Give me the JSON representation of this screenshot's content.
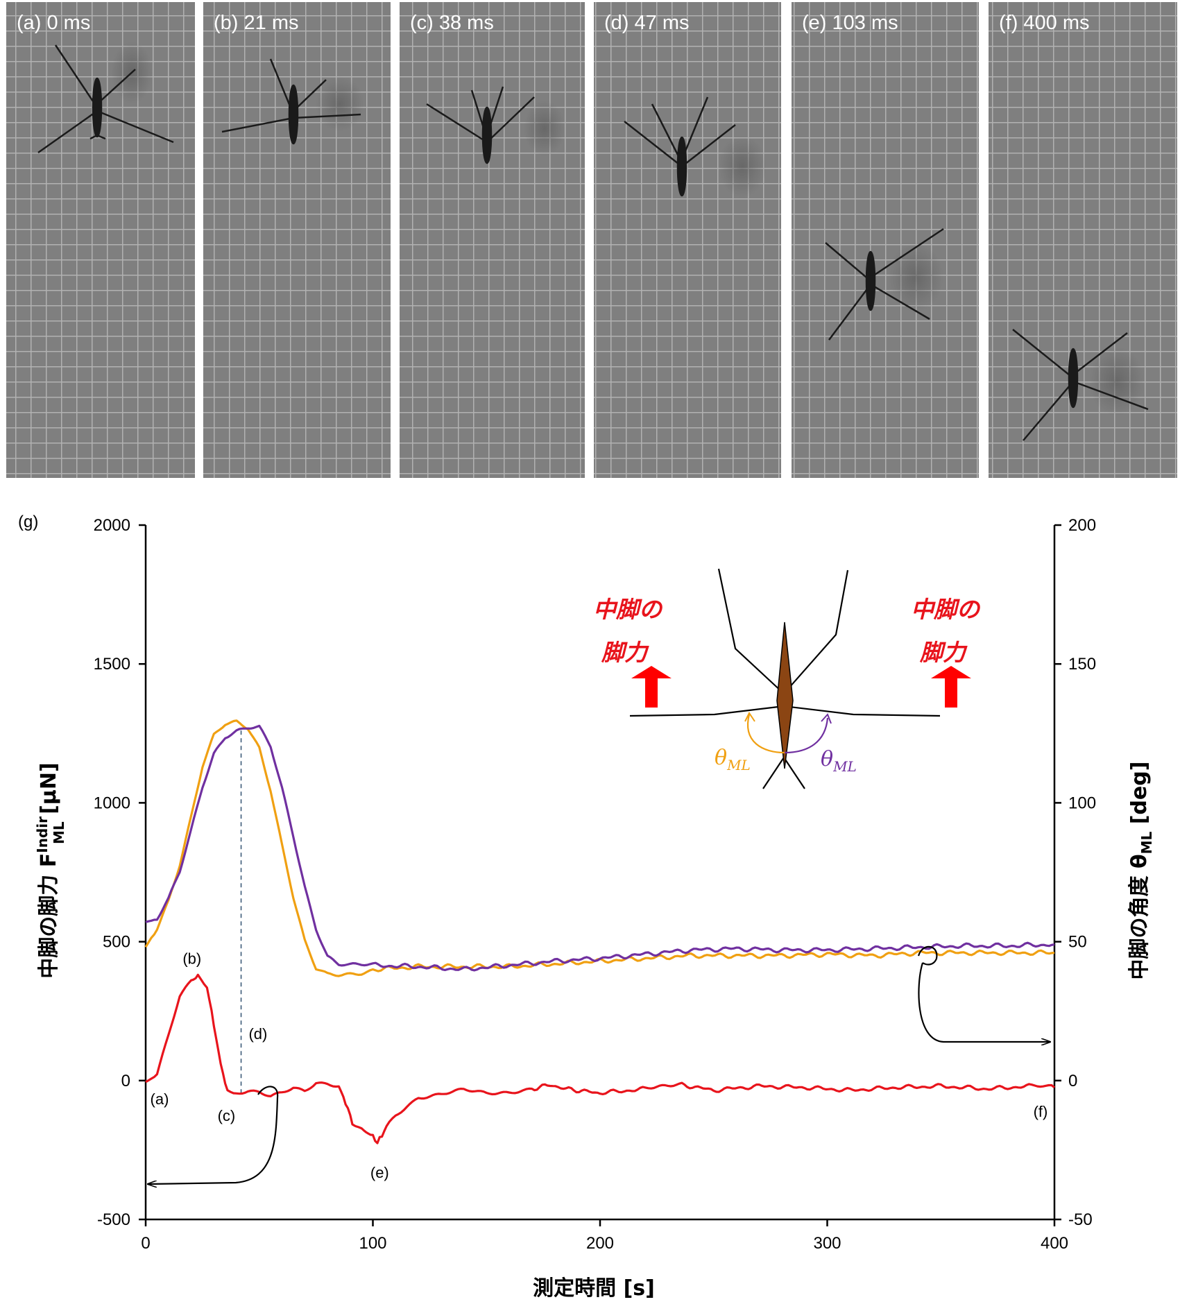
{
  "frames": [
    {
      "label": "(a) 0 ms"
    },
    {
      "label": "(b) 21 ms"
    },
    {
      "label": "(c) 38 ms"
    },
    {
      "label": "(d) 47 ms"
    },
    {
      "label": "(e) 103 ms"
    },
    {
      "label": "(f) 400 ms"
    }
  ],
  "chart_data": {
    "type": "line",
    "panel_label": "(g)",
    "xlabel": "測定時間 [s]",
    "ylabel_left": "中脚の脚力 F",
    "ylabel_left_sub": "ML",
    "ylabel_left_sup": "Indir",
    "ylabel_left_unit": " [μN]",
    "ylabel_right": "中脚の角度 θ",
    "ylabel_right_sub": "ML",
    "ylabel_right_unit": " [deg]",
    "xlim": [
      0,
      400
    ],
    "ylim_left": [
      -500,
      2000
    ],
    "ylim_right": [
      -50,
      200
    ],
    "x_ticks": [
      "0",
      "100",
      "200",
      "300",
      "400"
    ],
    "y_ticks_left": [
      "-500",
      "0",
      "500",
      "1000",
      "1500",
      "2000"
    ],
    "y_ticks_right": [
      "-50",
      "0",
      "50",
      "100",
      "150",
      "200"
    ],
    "grid": false,
    "series": [
      {
        "axis": "left",
        "color": "#e8141c",
        "x": [
          0,
          5,
          10,
          15,
          20,
          23,
          27,
          30,
          33,
          36,
          40,
          45,
          50,
          55,
          60,
          65,
          70,
          75,
          80,
          85,
          88,
          91,
          95,
          98,
          100,
          102,
          104,
          106,
          110,
          115,
          120,
          130,
          140,
          150,
          160,
          170,
          178,
          185,
          200,
          220,
          236,
          250,
          270,
          290,
          310,
          330,
          350,
          370,
          390,
          400
        ],
        "y": [
          -5,
          20,
          160,
          300,
          360,
          375,
          340,
          200,
          60,
          -40,
          -45,
          -40,
          -45,
          -60,
          -45,
          -25,
          -35,
          -5,
          -10,
          -20,
          -80,
          -150,
          -175,
          -190,
          -200,
          -225,
          -195,
          -170,
          -125,
          -90,
          -60,
          -50,
          -35,
          -45,
          -40,
          -30,
          -15,
          -30,
          -45,
          -30,
          -15,
          -35,
          -20,
          -25,
          -35,
          -25,
          -20,
          -30,
          -20,
          -25
        ]
      },
      {
        "axis": "right",
        "color": "#f0a012",
        "x": [
          0,
          5,
          10,
          15,
          20,
          25,
          30,
          35,
          40,
          45,
          50,
          55,
          60,
          65,
          70,
          75,
          80,
          85,
          90,
          95,
          100,
          120,
          140,
          160,
          180,
          200,
          220,
          240,
          260,
          280,
          300,
          320,
          340,
          360,
          380,
          400
        ],
        "y": [
          48,
          55,
          65,
          78,
          95,
          113,
          124,
          128,
          129,
          127,
          120,
          105,
          85,
          66,
          50,
          40,
          38,
          38,
          38.5,
          39,
          40,
          41,
          41,
          41,
          42,
          43,
          44,
          45,
          45,
          45,
          45.5,
          45,
          46,
          46,
          46,
          46
        ]
      },
      {
        "axis": "right",
        "color": "#7030a0",
        "x": [
          0,
          5,
          10,
          15,
          20,
          25,
          30,
          35,
          40,
          45,
          50,
          55,
          60,
          65,
          70,
          75,
          80,
          85,
          90,
          95,
          100,
          120,
          140,
          160,
          180,
          200,
          220,
          240,
          260,
          280,
          300,
          320,
          340,
          360,
          380,
          400
        ],
        "y": [
          57,
          58,
          65,
          75,
          90,
          106,
          118,
          124,
          126,
          127,
          127,
          120,
          105,
          88,
          70,
          55,
          45,
          42,
          41.5,
          41.5,
          41.5,
          41,
          40,
          41.5,
          43,
          44,
          45.5,
          47,
          47.5,
          47,
          47,
          47.5,
          48,
          48.5,
          48.5,
          49
        ]
      }
    ],
    "annotations": [
      {
        "text": "(a)",
        "x": 0,
        "y": -5
      },
      {
        "text": "(b)",
        "x": 21,
        "y": 375
      },
      {
        "text": "(c)",
        "x": 38,
        "y": -45
      },
      {
        "text": "(d)",
        "x": 47,
        "y": -45
      },
      {
        "text": "(e)",
        "x": 103,
        "y": -225
      },
      {
        "text": "(f)",
        "x": 400,
        "y": -25
      }
    ]
  },
  "inset": {
    "left_label_line1": "中脚の",
    "left_label_line2": "脚力",
    "right_label_line1": "中脚の",
    "right_label_line2": "脚力",
    "theta_left": "θ",
    "theta_left_sub": "ML",
    "theta_right": "θ",
    "theta_right_sub": "ML",
    "theta_left_color": "#f0a012",
    "theta_right_color": "#7030a0",
    "body_color": "#8b4513",
    "arrow_color": "#ff0000"
  }
}
